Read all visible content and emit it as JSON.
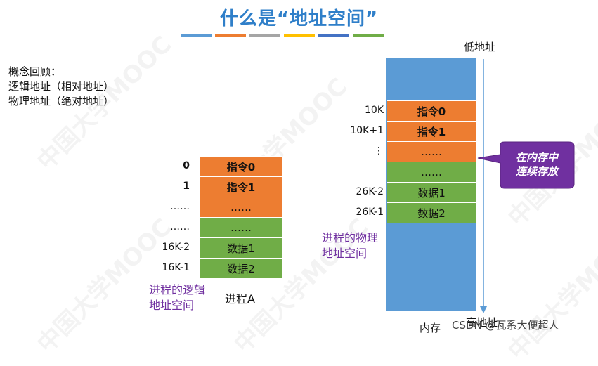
{
  "title": "什么是“地址空间”",
  "color_bar": [
    "#5b9bd5",
    "#ed7d31",
    "#a5a5a5",
    "#ffc000",
    "#4472c4",
    "#70ad47"
  ],
  "concepts": [
    "概念回顾：",
    "逻辑地址（相对地址）",
    "物理地址（绝对地址）"
  ],
  "logical": {
    "rows": [
      {
        "label": "0",
        "text": "指令0",
        "color": "orange",
        "bold": true
      },
      {
        "label": "1",
        "text": "指令1",
        "color": "orange",
        "bold": true
      },
      {
        "label": "……",
        "text": "……",
        "color": "orange",
        "bold": false
      },
      {
        "label": "……",
        "text": "……",
        "color": "green",
        "bold": false
      },
      {
        "label": "16K-2",
        "text": "数据1",
        "color": "green",
        "bold": false
      },
      {
        "label": "16K-1",
        "text": "数据2",
        "color": "green",
        "bold": false
      }
    ],
    "caption_line1": "进程的逻辑",
    "caption_line2": "地址空间",
    "process_name": "进程A"
  },
  "physical": {
    "low_address": "低地址",
    "high_address": "高地址",
    "memory_label": "内存",
    "rows": [
      {
        "label": "10K",
        "text": "指令0",
        "color": "orange",
        "bold": true
      },
      {
        "label": "10K+1",
        "text": "指令1",
        "color": "orange",
        "bold": true
      },
      {
        "label": "⋮",
        "text": "……",
        "color": "orange",
        "bold": false
      },
      {
        "label": "",
        "text": "……",
        "color": "green",
        "bold": false
      },
      {
        "label": "26K-2",
        "text": "数据1",
        "color": "green",
        "bold": false
      },
      {
        "label": "26K-1",
        "text": "数据2",
        "color": "green",
        "bold": false
      }
    ],
    "caption_line1": "进程的物理",
    "caption_line2": "地址空间",
    "callout_line1": "在内存中",
    "callout_line2": "连续存放"
  },
  "watermark_text": "中国大学MOOC",
  "footer_credit": "CSDN @瓦系大便超人",
  "colors": {
    "memory_blue": "#5b9bd5",
    "orange": "#ed7d31",
    "green": "#70ad47",
    "purple": "#7030a0",
    "title_blue": "#2f7fc9"
  }
}
